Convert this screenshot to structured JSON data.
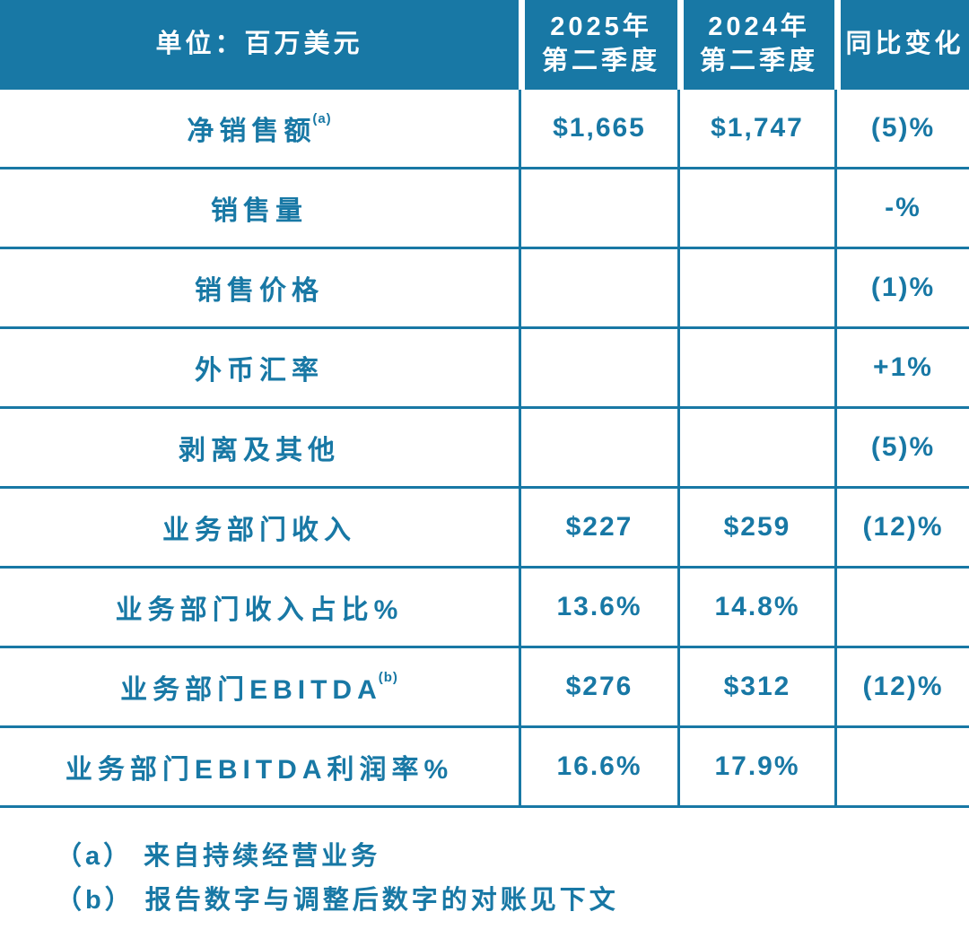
{
  "colors": {
    "accent": "#1878a5",
    "header_text": "#ffffff",
    "background": "#ffffff"
  },
  "table": {
    "header": {
      "unit": "单位：百万美元",
      "c2025_line1": "2025年",
      "c2025_line2": "第二季度",
      "c2024_line1": "2024年",
      "c2024_line2": "第二季度",
      "yoy": "同比变化"
    },
    "rows": [
      {
        "label": "净销售额",
        "sup": "(a)",
        "y2025": "$1,665",
        "y2024": "$1,747",
        "yoy": "(5)%"
      },
      {
        "label": "销售量",
        "sup": "",
        "y2025": "",
        "y2024": "",
        "yoy": "-%"
      },
      {
        "label": "销售价格",
        "sup": "",
        "y2025": "",
        "y2024": "",
        "yoy": "(1)%"
      },
      {
        "label": "外币汇率",
        "sup": "",
        "y2025": "",
        "y2024": "",
        "yoy": "+1%"
      },
      {
        "label": "剥离及其他",
        "sup": "",
        "y2025": "",
        "y2024": "",
        "yoy": "(5)%"
      },
      {
        "label": "业务部门收入",
        "sup": "",
        "y2025": "$227",
        "y2024": "$259",
        "yoy": "(12)%"
      },
      {
        "label": "业务部门收入占比%",
        "sup": "",
        "y2025": "13.6%",
        "y2024": "14.8%",
        "yoy": ""
      },
      {
        "label": "业务部门EBITDA",
        "sup": "(b)",
        "y2025": "$276",
        "y2024": "$312",
        "yoy": "(12)%"
      },
      {
        "label": "业务部门EBITDA利润率%",
        "sup": "",
        "y2025": "16.6%",
        "y2024": "17.9%",
        "yoy": ""
      }
    ],
    "footnotes": [
      "（a） 来自持续经营业务",
      "（b） 报告数字与调整后数字的对账见下文"
    ]
  },
  "chart_data": {
    "type": "table",
    "title": "单位：百万美元",
    "columns": [
      "单位：百万美元",
      "2025年第二季度",
      "2024年第二季度",
      "同比变化"
    ],
    "rows": [
      [
        "净销售额(a)",
        "$1,665",
        "$1,747",
        "(5)%"
      ],
      [
        "销售量",
        "",
        "",
        "-%"
      ],
      [
        "销售价格",
        "",
        "",
        "(1)%"
      ],
      [
        "外币汇率",
        "",
        "",
        "+1%"
      ],
      [
        "剥离及其他",
        "",
        "",
        "(5)%"
      ],
      [
        "业务部门收入",
        "$227",
        "$259",
        "(12)%"
      ],
      [
        "业务部门收入占比%",
        "13.6%",
        "14.8%",
        ""
      ],
      [
        "业务部门EBITDA(b)",
        "$276",
        "$312",
        "(12)%"
      ],
      [
        "业务部门EBITDA利润率%",
        "16.6%",
        "17.9%",
        ""
      ]
    ],
    "footnotes": [
      "（a） 来自持续经营业务",
      "（b） 报告数字与调整后数字的对账见下文"
    ]
  }
}
